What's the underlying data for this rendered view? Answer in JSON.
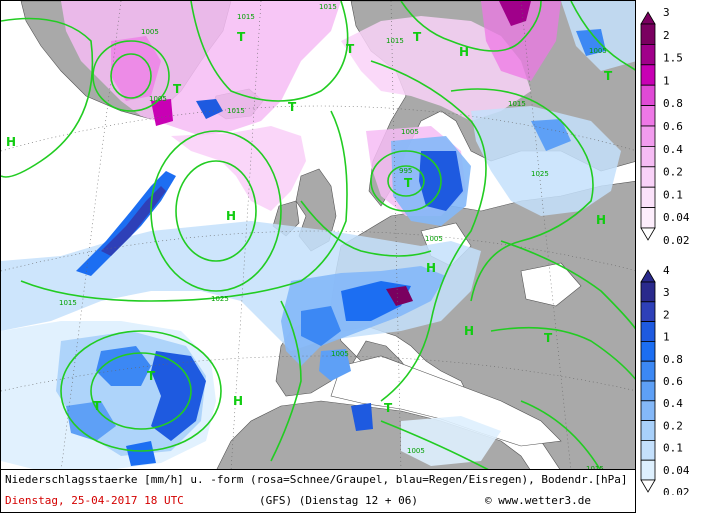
{
  "footer": {
    "description": "Niederschlagsstaerke [mm/h] u. -form (rosa=Schnee/Graupel, blau=Regen/Eisregen), Bodendr.[hPa]",
    "date": "Dienstag, 25-04-2017  18 UTC",
    "model": "(GFS)   (Dienstag 12 + 06)",
    "copyright": "© www.wetter3.de"
  },
  "legend_snow": {
    "color_meaning": "snow/graupel",
    "labels": [
      "3",
      "2",
      "1.5",
      "1",
      "0.8",
      "0.6",
      "0.4",
      "0.2",
      "0.1",
      "0.04",
      "0.02"
    ],
    "colors": [
      "#7a0060",
      "#a0008a",
      "#c800b4",
      "#e04ad6",
      "#ee78e6",
      "#f29cee",
      "#f6bcf4",
      "#f9d2f8",
      "#fbe2fa",
      "#fdeefc"
    ]
  },
  "legend_rain": {
    "color_meaning": "rain/freezing rain",
    "labels": [
      "4",
      "3",
      "2",
      "1",
      "0.8",
      "0.6",
      "0.4",
      "0.2",
      "0.1",
      "0.04",
      "0.02"
    ],
    "colors": [
      "#2a2a8c",
      "#2e40b8",
      "#1e5ae0",
      "#1c6ef2",
      "#3c88f4",
      "#5ea0f6",
      "#84b8f8",
      "#a8d0fa",
      "#c4e0fc",
      "#def0fe"
    ]
  },
  "map": {
    "pressure_labels": [
      "1005",
      "1015",
      "1015",
      "1015",
      "1005",
      "1015",
      "1005",
      "995",
      "1005",
      "1025",
      "1015",
      "1025",
      "1015",
      "1005",
      "1005",
      "1015",
      "1005"
    ],
    "centers": [
      {
        "type": "T",
        "label": "T"
      },
      {
        "type": "T",
        "label": "T"
      },
      {
        "type": "T",
        "label": "T"
      },
      {
        "type": "T",
        "label": "T"
      },
      {
        "type": "T",
        "label": "T"
      },
      {
        "type": "T",
        "label": "T"
      },
      {
        "type": "T",
        "label": "T"
      },
      {
        "type": "T",
        "label": "T"
      },
      {
        "type": "T",
        "label": "T"
      },
      {
        "type": "T",
        "label": "T"
      },
      {
        "type": "T",
        "label": "T"
      },
      {
        "type": "H",
        "label": "H"
      },
      {
        "type": "H",
        "label": "H"
      },
      {
        "type": "H",
        "label": "H"
      },
      {
        "type": "H",
        "label": "H"
      },
      {
        "type": "H",
        "label": "H"
      },
      {
        "type": "H",
        "label": "H"
      },
      {
        "type": "H",
        "label": "H"
      }
    ]
  }
}
